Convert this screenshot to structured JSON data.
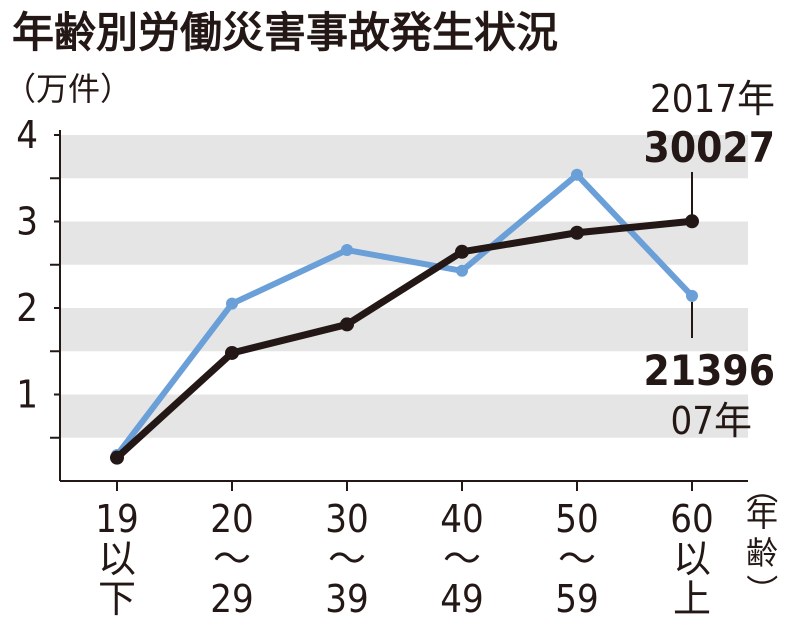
{
  "chart_data": {
    "type": "line",
    "title": "年齢別労働災害事故発生状況",
    "ylabel": "（万件）",
    "xlabel": "（年齢）",
    "ylim": [
      0,
      4
    ],
    "yticks": [
      1,
      2,
      3,
      4
    ],
    "categories": [
      [
        "19",
        "以",
        "下"
      ],
      [
        "20",
        "～",
        "29"
      ],
      [
        "30",
        "～",
        "39"
      ],
      [
        "40",
        "～",
        "49"
      ],
      [
        "50",
        "～",
        "59"
      ],
      [
        "60",
        "以",
        "上"
      ]
    ],
    "series": [
      {
        "name": "2007年",
        "color": "#6a9fd8",
        "values": [
          0.3,
          2.05,
          2.67,
          2.43,
          3.54,
          2.1396
        ]
      },
      {
        "name": "2017年",
        "color": "#231815",
        "values": [
          0.27,
          1.48,
          1.81,
          2.65,
          2.87,
          3.0027
        ]
      }
    ],
    "annotations": {
      "end_2017_year": "2017年",
      "end_2017_value": "30027",
      "end_2007_value": "21396",
      "end_2007_year": "07年"
    },
    "band_color": "#e5e5e5",
    "axis_color": "#231815"
  }
}
